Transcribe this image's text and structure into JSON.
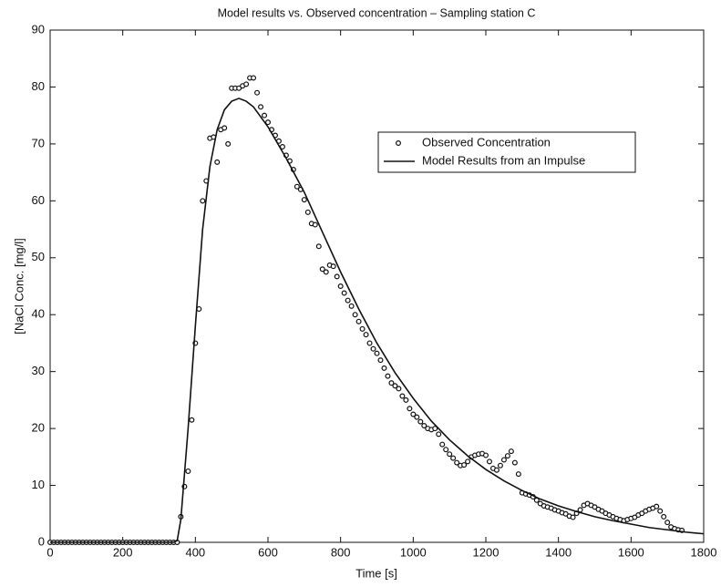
{
  "chart_data": {
    "type": "scatter",
    "title": "Model results vs. Observed concentration – Sampling station C",
    "x_label": "Time [s]",
    "y_label": "[NaCl Conc. [mg/l]",
    "xlim": [
      0,
      1800
    ],
    "ylim": [
      0,
      90
    ],
    "xticks": [
      0,
      200,
      400,
      600,
      800,
      1000,
      1200,
      1400,
      1600,
      1800
    ],
    "yticks": [
      0,
      10,
      20,
      30,
      40,
      50,
      60,
      70,
      80,
      90
    ],
    "grid": false,
    "legend": "upper right",
    "series": [
      {
        "name": "Observed Concentration",
        "type": "scatter",
        "color": "#111111",
        "x": [
          0,
          10,
          20,
          30,
          40,
          50,
          60,
          70,
          80,
          90,
          100,
          110,
          120,
          130,
          140,
          150,
          160,
          170,
          180,
          190,
          200,
          210,
          220,
          230,
          240,
          250,
          260,
          270,
          280,
          290,
          300,
          310,
          320,
          330,
          340,
          350,
          360,
          370,
          380,
          390,
          400,
          410,
          420,
          430,
          440,
          450,
          460,
          470,
          480,
          490,
          500,
          510,
          520,
          530,
          540,
          550,
          560,
          570,
          580,
          590,
          600,
          610,
          620,
          630,
          640,
          650,
          660,
          670,
          680,
          690,
          700,
          710,
          720,
          730,
          740,
          750,
          760,
          770,
          780,
          790,
          800,
          810,
          820,
          830,
          840,
          850,
          860,
          870,
          880,
          890,
          900,
          910,
          920,
          930,
          940,
          950,
          960,
          970,
          980,
          990,
          1000,
          1010,
          1020,
          1030,
          1040,
          1050,
          1060,
          1070,
          1080,
          1090,
          1100,
          1110,
          1120,
          1130,
          1140,
          1150,
          1160,
          1170,
          1180,
          1190,
          1200,
          1210,
          1220,
          1230,
          1240,
          1250,
          1260,
          1270,
          1280,
          1290,
          1300,
          1310,
          1320,
          1330,
          1340,
          1350,
          1360,
          1370,
          1380,
          1390,
          1400,
          1410,
          1420,
          1430,
          1440,
          1450,
          1460,
          1470,
          1480,
          1490,
          1500,
          1510,
          1520,
          1530,
          1540,
          1550,
          1560,
          1570,
          1580,
          1590,
          1600,
          1610,
          1620,
          1630,
          1640,
          1650,
          1660,
          1670,
          1680,
          1690,
          1700,
          1710,
          1720,
          1730,
          1740
        ],
        "values": [
          0,
          0,
          0,
          0,
          0,
          0,
          0,
          0,
          0,
          0,
          0,
          0,
          0,
          0,
          0,
          0,
          0,
          0,
          0,
          0,
          0,
          0,
          0,
          0,
          0,
          0,
          0,
          0,
          0,
          0,
          0,
          0,
          0,
          0,
          0,
          0,
          4.5,
          9.8,
          12.5,
          21.5,
          35,
          41,
          60,
          63.5,
          71,
          71.2,
          66.8,
          72.5,
          72.8,
          70,
          79.8,
          79.8,
          79.8,
          80.2,
          80.5,
          81.6,
          81.6,
          79,
          76.5,
          75,
          73.8,
          72.5,
          71.5,
          70.5,
          69.5,
          68,
          67,
          65.5,
          62.5,
          62,
          60.2,
          58,
          56,
          55.8,
          52,
          48,
          47.5,
          48.7,
          48.5,
          46.7,
          45,
          43.8,
          42.5,
          41.5,
          40,
          38.8,
          37.5,
          36.5,
          35,
          34,
          33.2,
          32,
          30.6,
          29.2,
          28,
          27.5,
          27,
          25.7,
          25,
          23.5,
          22.5,
          22,
          21.2,
          20.5,
          20,
          19.8,
          20,
          19,
          17.2,
          16.3,
          15.5,
          14.8,
          14,
          13.5,
          13.6,
          14.2,
          15,
          15.3,
          15.5,
          15.6,
          15.3,
          14.2,
          13,
          12.7,
          13.5,
          14.5,
          15.2,
          16,
          14,
          12,
          8.7,
          8.5,
          8.3,
          8,
          7.4,
          6.8,
          6.4,
          6.2,
          6,
          5.7,
          5.5,
          5.2,
          5,
          4.6,
          4.4,
          5.1,
          5.7,
          6.5,
          6.8,
          6.5,
          6.2,
          5.8,
          5.5,
          5.1,
          4.8,
          4.5,
          4.2,
          4,
          3.8,
          4,
          4.2,
          4.4,
          4.8,
          5.1,
          5.5,
          5.8,
          6,
          6.3,
          5.5,
          4.5,
          3.5,
          2.7,
          2.4,
          2.2,
          2.1
        ]
      },
      {
        "name": "Model Results from an Impulse",
        "type": "line",
        "color": "#111111",
        "x": [
          0,
          340,
          350,
          360,
          380,
          400,
          420,
          440,
          460,
          480,
          500,
          520,
          540,
          560,
          600,
          650,
          700,
          750,
          800,
          850,
          900,
          950,
          1000,
          1050,
          1100,
          1150,
          1200,
          1250,
          1300,
          1350,
          1400,
          1450,
          1500,
          1550,
          1600,
          1650,
          1700,
          1750,
          1800
        ],
        "values": [
          0,
          0,
          0.3,
          4,
          20,
          38,
          55,
          66,
          72.5,
          76,
          77.5,
          78,
          77.5,
          76.5,
          73,
          67.5,
          61.5,
          54.5,
          47.5,
          41,
          35,
          29.8,
          25.3,
          21.3,
          18,
          15.2,
          12.8,
          10.8,
          9.1,
          7.6,
          6.4,
          5.4,
          4.5,
          3.8,
          3.2,
          2.6,
          2.2,
          1.8,
          1.5
        ]
      }
    ]
  }
}
